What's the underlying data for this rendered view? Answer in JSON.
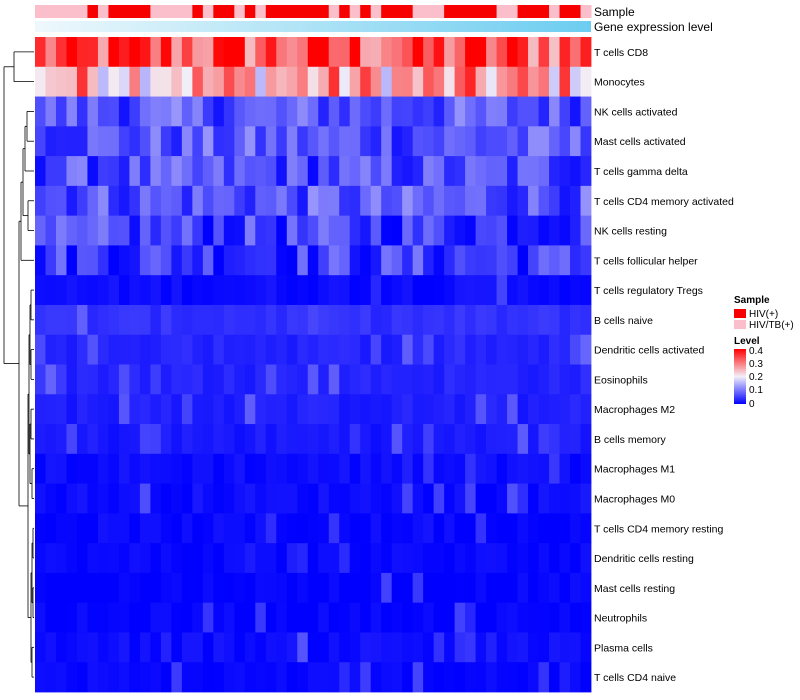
{
  "chart_data": {
    "type": "heatmap",
    "annotations": {
      "sample_label": "Sample",
      "gene_label": "Gene expression level",
      "sample_pattern": [
        0,
        0,
        0,
        0,
        0,
        1,
        0,
        1,
        1,
        1,
        1,
        0,
        0,
        0,
        0,
        1,
        0,
        1,
        1,
        0,
        1,
        0,
        1,
        1,
        1,
        1,
        1,
        1,
        0,
        1,
        0,
        1,
        0,
        1,
        1,
        1,
        0,
        0,
        0,
        1,
        1,
        1,
        1,
        1,
        0,
        0,
        1,
        1,
        1,
        0,
        1,
        1,
        0
      ]
    },
    "rows": [
      "T cells CD8",
      "Monocytes",
      "NK cells activated",
      "Mast cells activated",
      "T cells gamma delta",
      "T cells CD4 memory activated",
      "NK cells resting",
      "T cells follicular helper",
      "T cells regulatory  Tregs",
      "B cells naive",
      "Dendritic cells activated",
      "Eosinophils",
      "Macrophages M2",
      "B cells memory",
      "Macrophages M1",
      "Macrophages M0",
      "T cells CD4 memory resting",
      "Dendritic cells resting",
      "Mast cells resting",
      "Neutrophils",
      "Plasma cells",
      "T cells CD4 naive"
    ],
    "row_mean_level": [
      0.33,
      0.26,
      0.07,
      0.07,
      0.06,
      0.07,
      0.05,
      0.05,
      0.01,
      0.04,
      0.03,
      0.03,
      0.025,
      0.02,
      0.01,
      0.01,
      0.005,
      0.005,
      0.002,
      0.002,
      0.01,
      0.004
    ],
    "n_columns": 53,
    "legend": {
      "sample_title": "Sample",
      "sample_items": [
        {
          "label": "HIV(+)",
          "color": "#f60000"
        },
        {
          "label": "HIV/TB(+)",
          "color": "#fbbfcc"
        }
      ],
      "level_title": "Level",
      "level_ticks": [
        "0.4",
        "0.3",
        "0.2",
        "0.1",
        "0"
      ],
      "level_range": [
        0,
        0.4
      ]
    },
    "colors": {
      "low": "#0000ff",
      "mid": "#f3f0f8",
      "high": "#ff0000",
      "gene_start": "#e6f3fa",
      "gene_end": "#6ccdf0"
    }
  }
}
